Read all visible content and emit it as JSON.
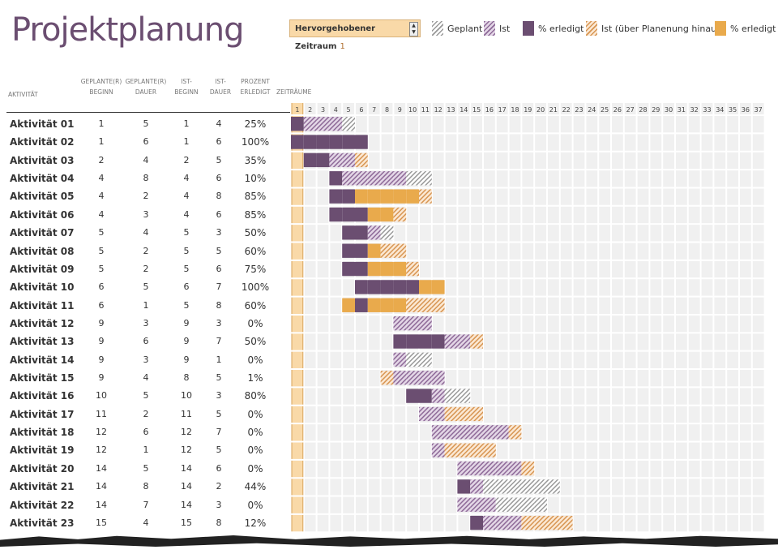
{
  "title": "Projektplanung",
  "period_selector": {
    "label": "Hervorgehobener Zeitraum",
    "value": "1"
  },
  "legend": [
    {
      "label": "Geplant",
      "icon": "hatch-grey"
    },
    {
      "label": "Ist",
      "icon": "hatch-purple"
    },
    {
      "label": "% erledigt",
      "icon": "solid-purple"
    },
    {
      "label": "Ist (über Planenung hinaus)",
      "icon": "hatch-orange"
    },
    {
      "label": "% erledigt",
      "icon": "solid-orange"
    }
  ],
  "colors": {
    "purple": "#6b4e71",
    "orange": "#e9aa4c",
    "highlight": "#f9d9a8",
    "title": "#6b4e71"
  },
  "headers": {
    "activity": "AKTIVITÄT",
    "plan_start": [
      "GEPLANTE(R)",
      "BEGINN"
    ],
    "plan_dur": [
      "GEPLANTE(R)",
      "DAUER"
    ],
    "act_start": [
      "IST-",
      "BEGINN"
    ],
    "act_dur": [
      "IST-",
      "DAUER"
    ],
    "pct": [
      "PROZENT",
      "ERLEDIGT"
    ],
    "periods": "ZEITRÄUME"
  },
  "periods": [
    1,
    2,
    3,
    4,
    5,
    6,
    7,
    8,
    9,
    10,
    11,
    12,
    13,
    14,
    15,
    16,
    17,
    18,
    19,
    20,
    21,
    22,
    23,
    24,
    25,
    26,
    27,
    28,
    29,
    30,
    31,
    32,
    33,
    34,
    35,
    36,
    37
  ],
  "highlighted_period": 1,
  "activities": [
    {
      "name": "Aktivität 01",
      "ps": 1,
      "pd": 5,
      "as": 1,
      "ad": 4,
      "pct": "25%"
    },
    {
      "name": "Aktivität 02",
      "ps": 1,
      "pd": 6,
      "as": 1,
      "ad": 6,
      "pct": "100%"
    },
    {
      "name": "Aktivität 03",
      "ps": 2,
      "pd": 4,
      "as": 2,
      "ad": 5,
      "pct": "35%"
    },
    {
      "name": "Aktivität 04",
      "ps": 4,
      "pd": 8,
      "as": 4,
      "ad": 6,
      "pct": "10%"
    },
    {
      "name": "Aktivität 05",
      "ps": 4,
      "pd": 2,
      "as": 4,
      "ad": 8,
      "pct": "85%"
    },
    {
      "name": "Aktivität 06",
      "ps": 4,
      "pd": 3,
      "as": 4,
      "ad": 6,
      "pct": "85%"
    },
    {
      "name": "Aktivität 07",
      "ps": 5,
      "pd": 4,
      "as": 5,
      "ad": 3,
      "pct": "50%"
    },
    {
      "name": "Aktivität 08",
      "ps": 5,
      "pd": 2,
      "as": 5,
      "ad": 5,
      "pct": "60%"
    },
    {
      "name": "Aktivität 09",
      "ps": 5,
      "pd": 2,
      "as": 5,
      "ad": 6,
      "pct": "75%"
    },
    {
      "name": "Aktivität 10",
      "ps": 6,
      "pd": 5,
      "as": 6,
      "ad": 7,
      "pct": "100%"
    },
    {
      "name": "Aktivität 11",
      "ps": 6,
      "pd": 1,
      "as": 5,
      "ad": 8,
      "pct": "60%"
    },
    {
      "name": "Aktivität 12",
      "ps": 9,
      "pd": 3,
      "as": 9,
      "ad": 3,
      "pct": "0%"
    },
    {
      "name": "Aktivität 13",
      "ps": 9,
      "pd": 6,
      "as": 9,
      "ad": 7,
      "pct": "50%"
    },
    {
      "name": "Aktivität 14",
      "ps": 9,
      "pd": 3,
      "as": 9,
      "ad": 1,
      "pct": "0%"
    },
    {
      "name": "Aktivität 15",
      "ps": 9,
      "pd": 4,
      "as": 8,
      "ad": 5,
      "pct": "1%"
    },
    {
      "name": "Aktivität 16",
      "ps": 10,
      "pd": 5,
      "as": 10,
      "ad": 3,
      "pct": "80%"
    },
    {
      "name": "Aktivität 17",
      "ps": 11,
      "pd": 2,
      "as": 11,
      "ad": 5,
      "pct": "0%"
    },
    {
      "name": "Aktivität 18",
      "ps": 12,
      "pd": 6,
      "as": 12,
      "ad": 7,
      "pct": "0%"
    },
    {
      "name": "Aktivität 19",
      "ps": 12,
      "pd": 1,
      "as": 12,
      "ad": 5,
      "pct": "0%"
    },
    {
      "name": "Aktivität 20",
      "ps": 14,
      "pd": 5,
      "as": 14,
      "ad": 6,
      "pct": "0%"
    },
    {
      "name": "Aktivität 21",
      "ps": 14,
      "pd": 8,
      "as": 14,
      "ad": 2,
      "pct": "44%"
    },
    {
      "name": "Aktivität 22",
      "ps": 14,
      "pd": 7,
      "as": 14,
      "ad": 3,
      "pct": "0%"
    },
    {
      "name": "Aktivität 23",
      "ps": 15,
      "pd": 4,
      "as": 15,
      "ad": 8,
      "pct": "12%"
    }
  ]
}
